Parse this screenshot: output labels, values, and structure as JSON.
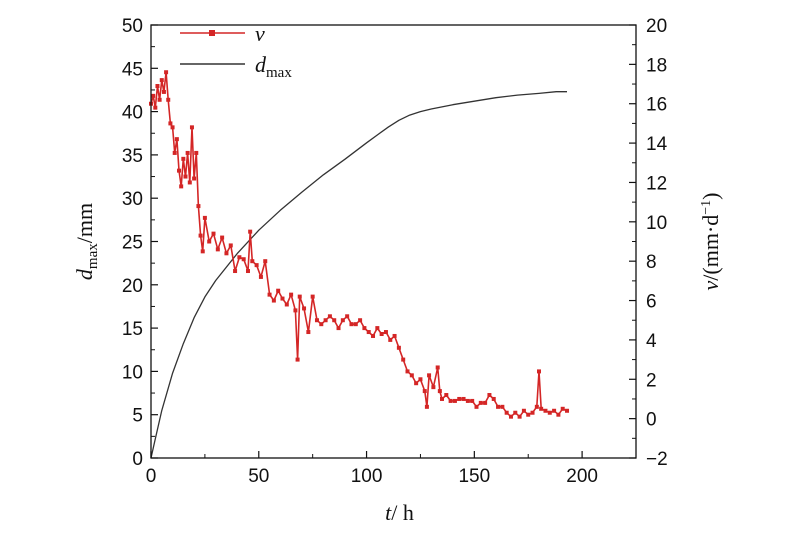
{
  "chart_data": {
    "type": "line",
    "x": {
      "var": "t",
      "unit": "h",
      "lim": [
        0,
        225
      ],
      "ticks": [
        0,
        50,
        100,
        150,
        200
      ]
    },
    "y_left": {
      "var": "d",
      "sub": "max",
      "unit": "mm",
      "lim": [
        0,
        50
      ],
      "ticks": [
        0,
        5,
        10,
        15,
        20,
        25,
        30,
        35,
        40,
        45,
        50
      ]
    },
    "y_right": {
      "var": "v",
      "unit": "(mm·d",
      "sup": "−1",
      "close": ")",
      "lim": [
        -2,
        20
      ],
      "ticks": [
        -2,
        0,
        2,
        4,
        6,
        8,
        10,
        12,
        14,
        16,
        18,
        20
      ]
    },
    "legend": [
      {
        "var": "v",
        "sub": "",
        "color": "#d42626",
        "marker": "square"
      },
      {
        "var": "d",
        "sub": "max",
        "color": "#333333",
        "marker": "none"
      }
    ],
    "legend_position": "top-left",
    "grid": false,
    "series": [
      {
        "axis": "left",
        "color": "#333333",
        "x": [
          0,
          2,
          5,
          10,
          15,
          20,
          25,
          30,
          40,
          50,
          60,
          70,
          80,
          90,
          100,
          105,
          110,
          115,
          120,
          125,
          130,
          140,
          150,
          160,
          170,
          180,
          188,
          193
        ],
        "y": [
          0,
          2.2,
          5.5,
          9.8,
          13.2,
          16.2,
          18.6,
          20.5,
          23.6,
          26.3,
          28.6,
          30.7,
          32.7,
          34.5,
          36.4,
          37.3,
          38.2,
          39.0,
          39.6,
          40.0,
          40.3,
          40.8,
          41.2,
          41.6,
          41.9,
          42.1,
          42.3,
          42.3
        ]
      },
      {
        "axis": "right",
        "color": "#d42626",
        "x": [
          0,
          1,
          2,
          3,
          4,
          5,
          6,
          7,
          8,
          9,
          10,
          11,
          12,
          13,
          14,
          15,
          16,
          17,
          18,
          19,
          20,
          21,
          22,
          23,
          24,
          25,
          27,
          29,
          31,
          33,
          35,
          37,
          39,
          41,
          43,
          45,
          46,
          47,
          49,
          51,
          53,
          55,
          57,
          59,
          61,
          63,
          65,
          67,
          68,
          69,
          71,
          73,
          75,
          77,
          79,
          81,
          83,
          85,
          87,
          89,
          91,
          93,
          95,
          97,
          99,
          101,
          103,
          105,
          107,
          109,
          111,
          113,
          115,
          117,
          119,
          121,
          123,
          125,
          127,
          128,
          129,
          131,
          133,
          134,
          135,
          137,
          139,
          141,
          143,
          145,
          147,
          149,
          151,
          153,
          155,
          157,
          159,
          161,
          163,
          165,
          167,
          169,
          171,
          173,
          175,
          177,
          179,
          180,
          181,
          183,
          185,
          187,
          189,
          191,
          193
        ],
        "y": [
          16.0,
          16.4,
          15.8,
          16.9,
          16.2,
          17.2,
          16.6,
          17.6,
          16.2,
          15.0,
          14.8,
          13.5,
          14.2,
          12.6,
          11.8,
          13.2,
          12.3,
          13.5,
          12.0,
          14.8,
          12.2,
          13.5,
          10.8,
          9.3,
          8.5,
          10.2,
          9.0,
          9.4,
          8.6,
          9.2,
          8.4,
          8.8,
          7.5,
          8.2,
          8.1,
          7.5,
          9.5,
          8.0,
          7.8,
          7.2,
          8.0,
          6.3,
          6.0,
          6.5,
          6.1,
          5.8,
          6.3,
          5.5,
          3.0,
          6.2,
          5.6,
          4.4,
          6.2,
          5.0,
          4.8,
          5.0,
          5.2,
          5.0,
          4.6,
          5.0,
          5.2,
          4.8,
          4.8,
          5.0,
          4.6,
          4.4,
          4.2,
          4.6,
          4.3,
          4.4,
          4.0,
          4.2,
          3.6,
          3.0,
          2.4,
          2.2,
          1.8,
          2.0,
          1.4,
          0.6,
          2.2,
          1.6,
          2.6,
          1.4,
          1.0,
          1.2,
          0.9,
          0.9,
          1.0,
          1.0,
          0.9,
          0.9,
          0.6,
          0.8,
          0.8,
          1.2,
          1.0,
          0.6,
          0.6,
          0.3,
          0.1,
          0.3,
          0.1,
          0.4,
          0.2,
          0.3,
          0.6,
          2.4,
          0.5,
          0.4,
          0.3,
          0.4,
          0.2,
          0.5,
          0.4
        ]
      }
    ]
  }
}
